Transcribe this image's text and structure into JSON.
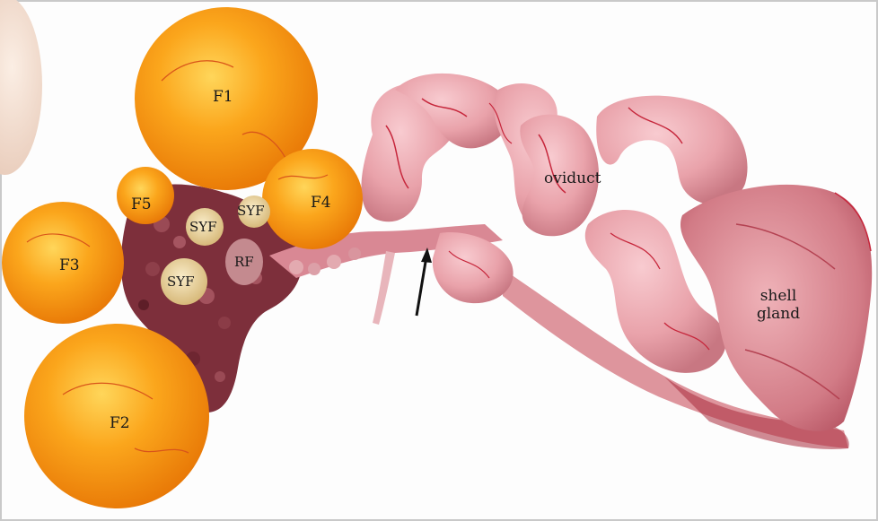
{
  "labels": {
    "f1": "F1",
    "f2": "F2",
    "f3": "F3",
    "f4": "F4",
    "f5": "F5",
    "syf_a": "SYF",
    "syf_b": "SYF",
    "syf_c": "SYF",
    "rf": "RF",
    "oviduct": "oviduct",
    "shell_gland_line1": "shell",
    "shell_gland_line2": "gland"
  },
  "colors": {
    "yolk_follicle": "#f79a12",
    "yolk_highlight": "#ffd05a",
    "small_yellow_follicle": "#efd9a6",
    "stroma": "#8a3a45",
    "oviduct_tissue": "#e9a6ad",
    "shell_gland_tissue": "#d77f88",
    "vessel": "#c6263b",
    "background": "#fdfdfd"
  },
  "annotations": {
    "arrow": "arrow-icon"
  }
}
